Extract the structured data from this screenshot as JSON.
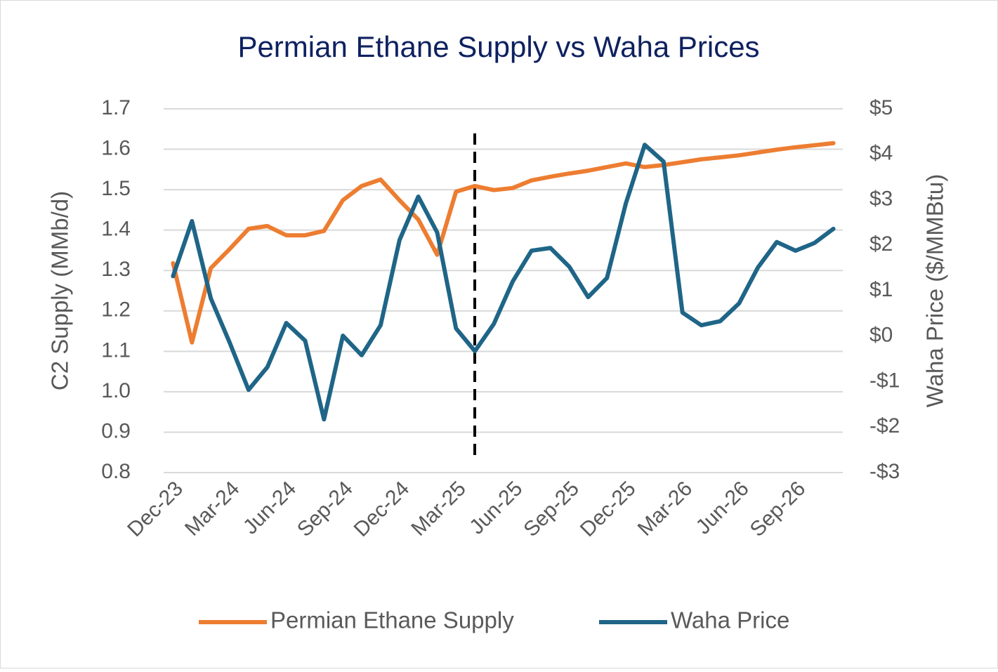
{
  "chart_data": {
    "type": "line",
    "title": "Permian Ethane Supply vs Waha Prices",
    "ylabel": "C2 Supply (MMb/d)",
    "y2label": "Waha Price ($/MMBtu)",
    "categories": [
      "Dec-23",
      null,
      null,
      "Mar-24",
      null,
      null,
      "Jun-24",
      null,
      null,
      "Sep-24",
      null,
      null,
      "Dec-24",
      null,
      null,
      "Mar-25",
      null,
      null,
      "Jun-25",
      null,
      null,
      "Sep-25",
      null,
      null,
      "Dec-25",
      null,
      null,
      "Mar-26",
      null,
      null,
      "Jun-26",
      null,
      null,
      "Sep-26",
      null,
      null
    ],
    "series": [
      {
        "name": "Permian Ethane Supply",
        "color": "#ed7d31",
        "axis": "y",
        "values": [
          1.318,
          1.122,
          1.306,
          1.353,
          1.403,
          1.41,
          1.387,
          1.387,
          1.398,
          1.474,
          1.509,
          1.525,
          1.474,
          1.426,
          1.339,
          1.495,
          1.509,
          1.499,
          1.504,
          1.523,
          1.532,
          1.54,
          1.547,
          1.556,
          1.565,
          1.556,
          1.561,
          1.568,
          1.575,
          1.58,
          1.585,
          1.592,
          1.599,
          1.605,
          1.61,
          1.615
        ]
      },
      {
        "name": "Waha Price",
        "color": "#1f6587",
        "axis": "y2",
        "values": [
          1.32,
          2.53,
          0.83,
          -0.14,
          -1.18,
          -0.68,
          0.29,
          -0.1,
          -1.83,
          0.01,
          -0.42,
          0.24,
          2.11,
          3.07,
          2.28,
          0.17,
          -0.33,
          0.27,
          1.2,
          1.88,
          1.94,
          1.53,
          0.86,
          1.28,
          2.92,
          4.21,
          3.84,
          0.52,
          0.24,
          0.33,
          0.72,
          1.51,
          2.07,
          1.88,
          2.05,
          2.36
        ]
      }
    ],
    "ylim": [
      0.8,
      1.7
    ],
    "yticks": [
      0.8,
      0.9,
      {
        "value": 1,
        "label": "1.0"
      },
      1.1,
      1.2,
      1.3,
      1.4,
      1.5,
      1.6,
      1.7
    ],
    "y2lim": [
      -3,
      5
    ],
    "y2ticks": [
      {
        "value": -3,
        "label": "-$3"
      },
      {
        "value": -2,
        "label": "-$2"
      },
      {
        "value": -1,
        "label": "-$1"
      },
      {
        "value": 0,
        "label": "$0"
      },
      {
        "value": 1,
        "label": "$1"
      },
      {
        "value": 2,
        "label": "$2"
      },
      {
        "value": 3,
        "label": "$3"
      },
      {
        "value": 4,
        "label": "$4"
      },
      {
        "value": 5,
        "label": "$5"
      }
    ],
    "grid": true,
    "legend": "bottom"
  }
}
